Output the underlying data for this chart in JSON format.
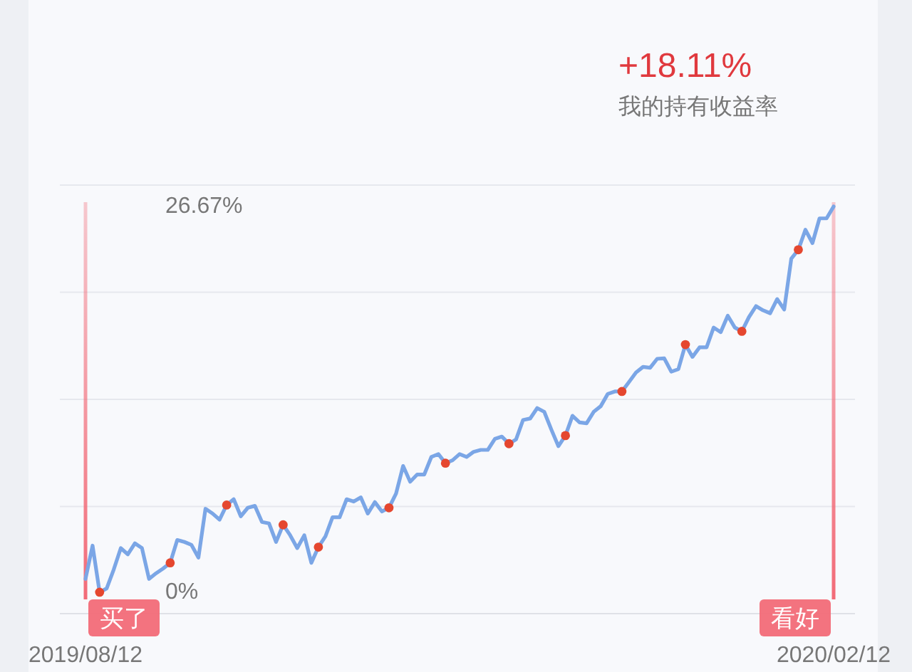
{
  "chart_data": {
    "type": "line",
    "categories": [
      "2019/08/12",
      null,
      null,
      null,
      null,
      null,
      null,
      null,
      null,
      null,
      null,
      null,
      null,
      null,
      null,
      null,
      null,
      null,
      null,
      null,
      null,
      null,
      null,
      null,
      null,
      null,
      null,
      null,
      null,
      null,
      null,
      null,
      null,
      null,
      null,
      null,
      null,
      null,
      null,
      null,
      null,
      null,
      null,
      null,
      null,
      null,
      null,
      null,
      null,
      null,
      null,
      null,
      null,
      null,
      null,
      null,
      null,
      null,
      null,
      null,
      null,
      null,
      null,
      null,
      null,
      null,
      null,
      null,
      null,
      null,
      null,
      null,
      null,
      null,
      null,
      null,
      null,
      null,
      null,
      null,
      null,
      null,
      null,
      null,
      null,
      null,
      null,
      null,
      null,
      null,
      null,
      null,
      null,
      null,
      null,
      null,
      null,
      null,
      null,
      null,
      null,
      null,
      null,
      null,
      null,
      null,
      "2020/02/12"
    ],
    "series": [
      {
        "color": "#7ba6e6",
        "values": [
          0.92,
          3.22,
          0,
          0.26,
          1.57,
          3.05,
          2.62,
          3.38,
          3.05,
          0.92,
          1.31,
          1.64,
          2.03,
          3.61,
          3.48,
          3.28,
          2.39,
          5.77,
          5.44,
          5.02,
          6.03,
          6.43,
          5.25,
          5.84,
          5.97,
          4.86,
          4.76,
          3.48,
          4.66,
          3.94,
          3.05,
          3.94,
          2.03,
          3.12,
          3.87,
          5.18,
          5.18,
          6.43,
          6.27,
          6.56,
          5.44,
          6.23,
          5.58,
          5.84,
          6.82,
          8.73,
          7.64,
          8.14,
          8.14,
          9.35,
          9.55,
          8.92,
          9.12,
          9.55,
          9.35,
          9.71,
          9.84,
          9.84,
          10.6,
          10.76,
          10.27,
          10.56,
          11.91,
          12.01,
          12.73,
          12.47,
          11.25,
          10.1,
          10.83,
          12.2,
          11.74,
          11.68,
          12.47,
          12.86,
          13.71,
          13.88,
          13.88,
          14.53,
          15.19,
          15.58,
          15.52,
          16.14,
          16.17,
          15.25,
          15.42,
          17.12,
          16.27,
          16.93,
          16.93,
          18.3,
          17.98,
          19.12,
          18.3,
          18.04,
          19.02,
          19.78,
          19.49,
          19.29,
          20.27,
          19.55,
          23.06,
          23.68,
          25.06,
          24.14,
          25.85,
          25.85,
          26.67
        ]
      },
      {
        "type": "scatter",
        "color": "#e5472f",
        "values": [
          null,
          null,
          0,
          null,
          null,
          null,
          null,
          null,
          null,
          null,
          null,
          null,
          2.03,
          null,
          null,
          null,
          null,
          null,
          null,
          null,
          6.03,
          null,
          null,
          null,
          null,
          null,
          null,
          null,
          4.66,
          null,
          null,
          null,
          null,
          3.12,
          null,
          null,
          null,
          null,
          null,
          null,
          null,
          null,
          null,
          5.84,
          null,
          null,
          null,
          null,
          null,
          null,
          null,
          8.92,
          null,
          null,
          null,
          null,
          null,
          null,
          null,
          null,
          10.27,
          null,
          null,
          null,
          null,
          null,
          null,
          null,
          10.83,
          null,
          null,
          null,
          null,
          null,
          null,
          null,
          13.88,
          null,
          null,
          null,
          null,
          null,
          null,
          null,
          null,
          17.12,
          null,
          null,
          null,
          null,
          null,
          null,
          null,
          18.04,
          null,
          null,
          null,
          null,
          null,
          null,
          null,
          23.68,
          null,
          null,
          null,
          null,
          null
        ]
      }
    ],
    "ylim": [
      -1.48,
      28.15
    ],
    "yticks": [
      {
        "value": 0,
        "label": "0%"
      },
      {
        "value": 26.67,
        "label": "26.67%"
      }
    ],
    "grid": true,
    "ref_lines": [
      {
        "axis": "x",
        "value": "2019/08/12",
        "label": "买了",
        "color": "#f26b78"
      },
      {
        "axis": "x",
        "value": "2020/02/12",
        "label": "看好",
        "color": "#f26b78"
      }
    ],
    "annotations": [
      "+18.11%",
      "我的持有收益率"
    ]
  }
}
